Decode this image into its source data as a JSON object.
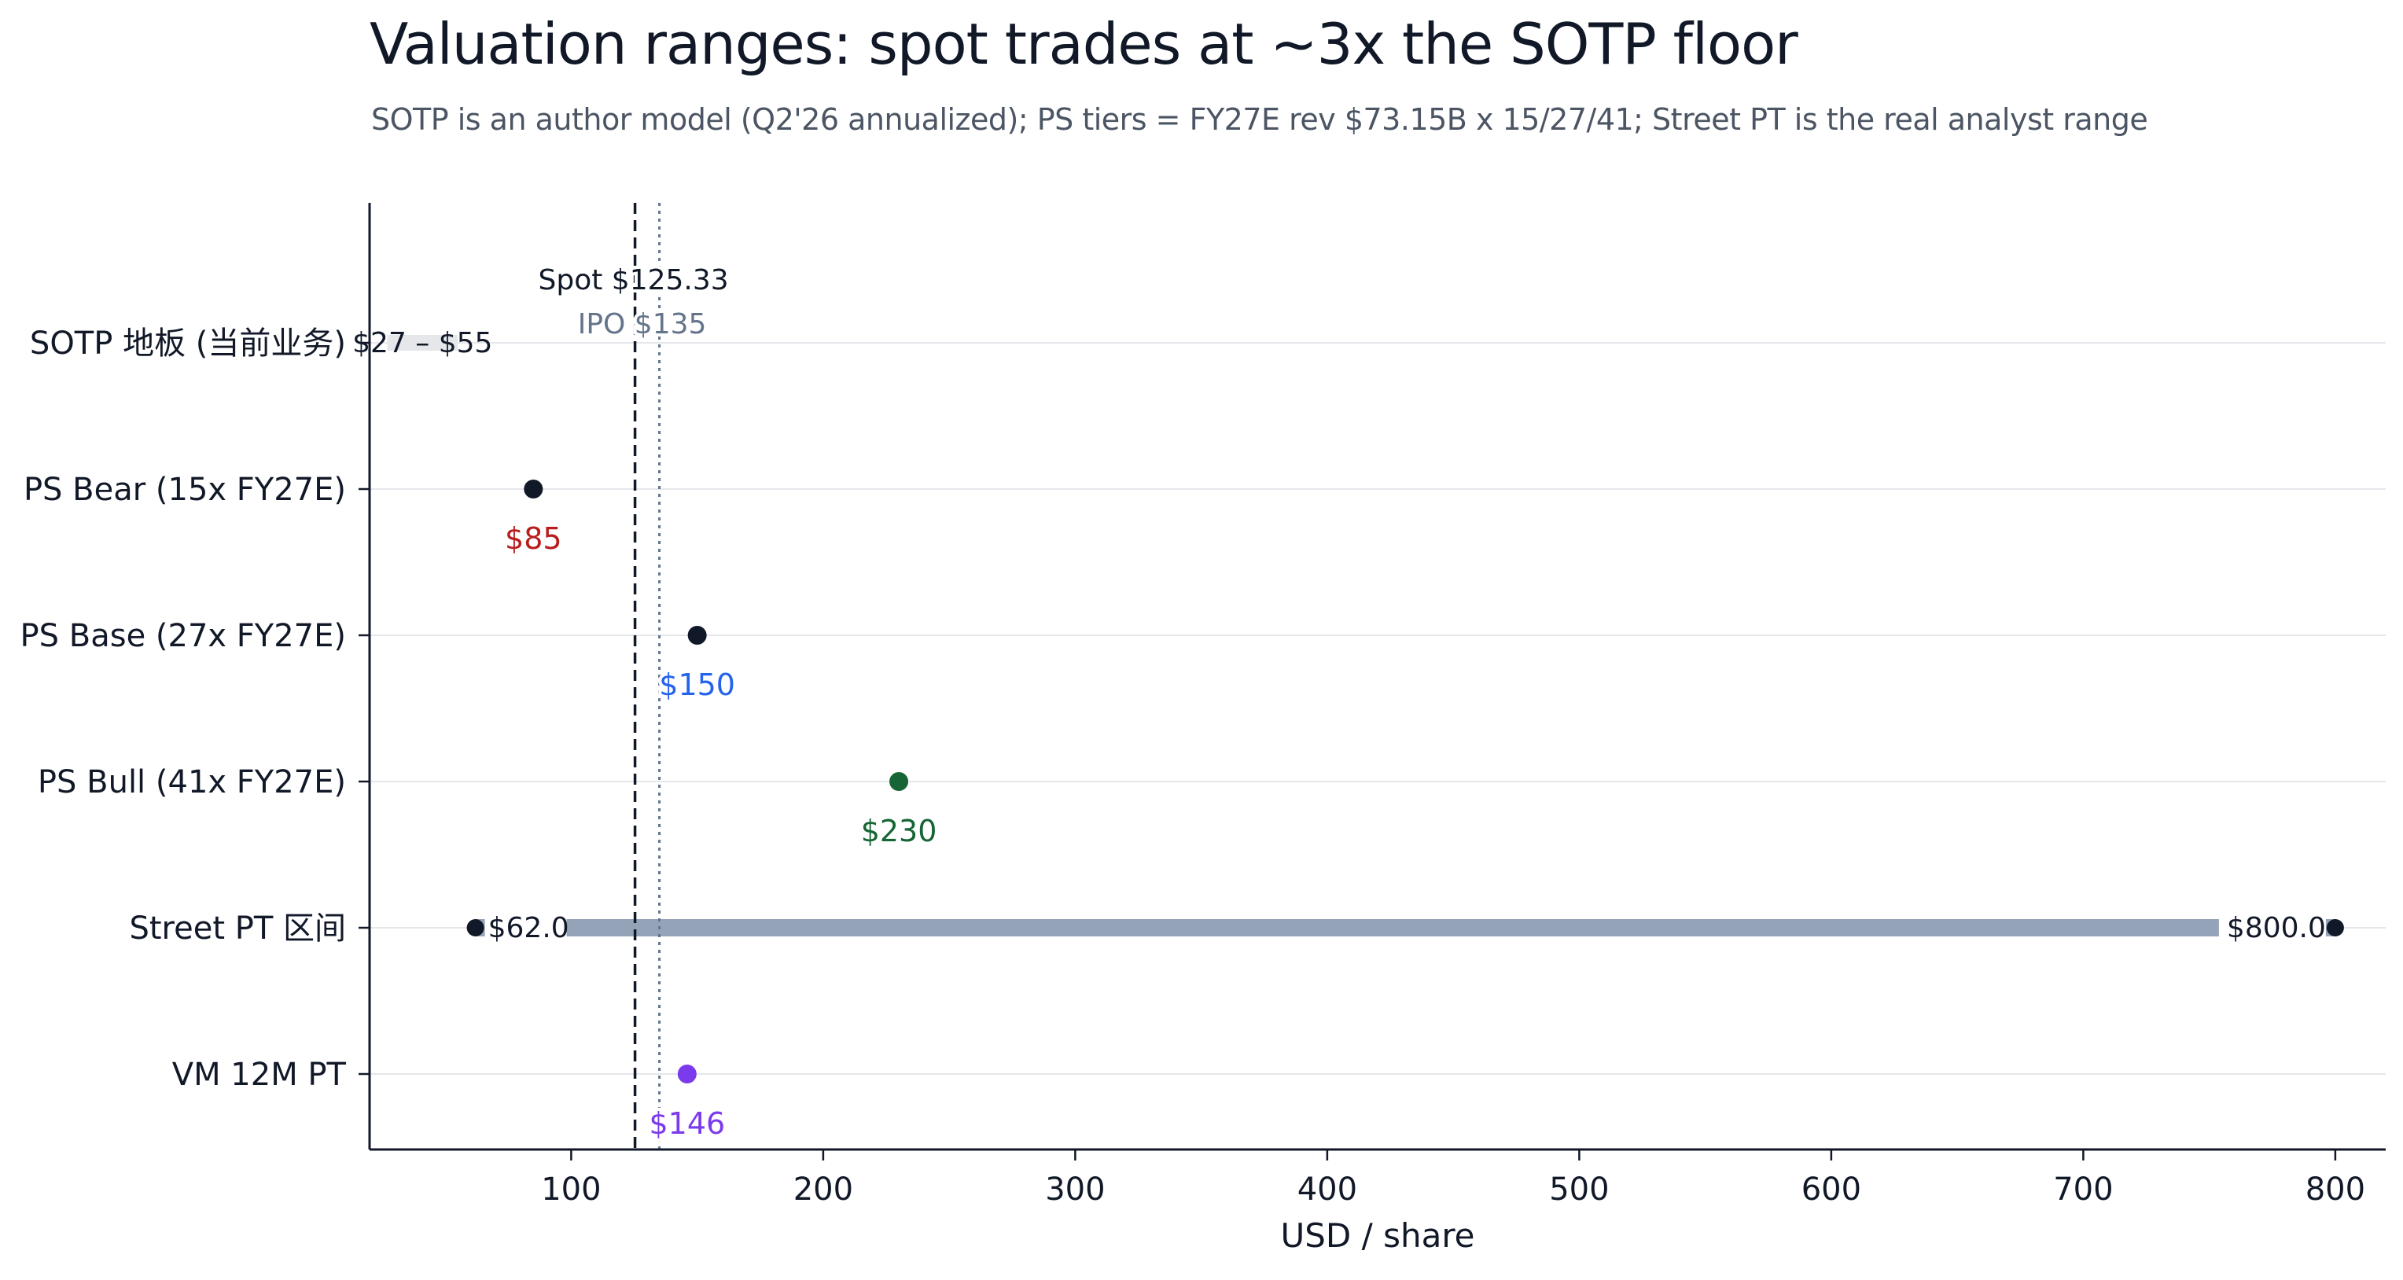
{
  "title": "Valuation ranges: spot trades at ~3x the SOTP floor",
  "subtitle": "SOTP is an author model (Q2'26 annualized); PS tiers = FY27E rev $73.15B x 15/27/41; Street PT is the real analyst range",
  "colors": {
    "ink": "#111827",
    "bear": "#b91c1c",
    "base": "#2563eb",
    "bull": "#166534",
    "vm": "#7c3aed",
    "ipo": "#64748b",
    "range_bar": "#94a3b8",
    "sotp_bar": "#e5e7eb",
    "grid": "#e5e7eb"
  },
  "chart_data": {
    "type": "scatter",
    "title": "Valuation ranges: spot trades at ~3x the SOTP floor",
    "subtitle": "SOTP is an author model (Q2'26 annualized); PS tiers = FY27E rev $73.15B x 15/27/41; Street PT is the real analyst range",
    "xlabel": "USD / share",
    "ylabel": "",
    "xlim": [
      20,
      820
    ],
    "xticks": [
      100,
      200,
      300,
      400,
      500,
      600,
      700,
      800
    ],
    "grid": "horizontal",
    "categories": [
      "SOTP 地板 (当前业务)",
      "PS Bear (15x FY27E)",
      "PS Base (27x FY27E)",
      "PS Bull (41x FY27E)",
      "Street PT 区间",
      "VM 12M PT"
    ],
    "ranges": [
      {
        "category": "SOTP 地板 (当前业务)",
        "low": 27,
        "high": 55,
        "label": "$27 – $55",
        "color": "#e5e7eb"
      },
      {
        "category": "Street PT 区间",
        "low": 62,
        "high": 800,
        "low_label": "$62.0",
        "high_label": "$800.0",
        "color": "#94a3b8"
      }
    ],
    "points": [
      {
        "category": "PS Bear (15x FY27E)",
        "value": 85,
        "label": "$85",
        "color": "#b91c1c"
      },
      {
        "category": "PS Base (27x FY27E)",
        "value": 150,
        "label": "$150",
        "color": "#2563eb"
      },
      {
        "category": "PS Bull (41x FY27E)",
        "value": 230,
        "label": "$230",
        "color": "#166534"
      },
      {
        "category": "VM 12M PT",
        "value": 146,
        "label": "$146",
        "color": "#7c3aed"
      }
    ],
    "reference_lines": [
      {
        "name": "spot",
        "value": 125.33,
        "label": "Spot $125.33",
        "style": "dashed",
        "color": "#111827"
      },
      {
        "name": "ipo",
        "value": 135,
        "label": "IPO $135",
        "style": "dotted",
        "color": "#64748b"
      }
    ]
  }
}
